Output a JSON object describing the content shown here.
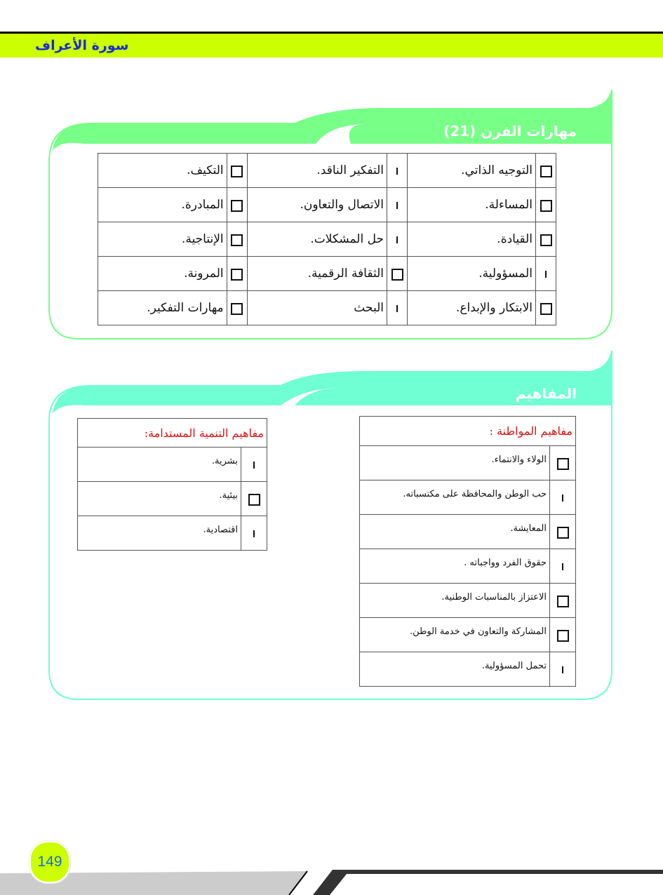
{
  "header": {
    "surah_title": "سورة الأعراف"
  },
  "skills": {
    "title": "مهارات القرن (21)",
    "rows": [
      [
        {
          "label": "التوجيه الذاتي.",
          "checked": false
        },
        {
          "label": "التفكير الناقد.",
          "checked": true
        },
        {
          "label": "التكيف.",
          "checked": false
        }
      ],
      [
        {
          "label": "المساءلة.",
          "checked": false
        },
        {
          "label": "الاتصال والتعاون.",
          "checked": true
        },
        {
          "label": "المبادرة.",
          "checked": false
        }
      ],
      [
        {
          "label": "القيادة.",
          "checked": false
        },
        {
          "label": "حل المشكلات.",
          "checked": true
        },
        {
          "label": "الإنتاجية.",
          "checked": false
        }
      ],
      [
        {
          "label": "المسؤولية.",
          "checked": true
        },
        {
          "label": "الثقافة الرقمية.",
          "checked": false
        },
        {
          "label": "المرونة.",
          "checked": false
        }
      ],
      [
        {
          "label": "الابتكار والإبداع.",
          "checked": false
        },
        {
          "label": "البحث",
          "checked": true
        },
        {
          "label": "مهارات التفكير.",
          "checked": false
        }
      ]
    ]
  },
  "concepts": {
    "title": "المفاهيم",
    "citizenship": {
      "header": "مفاهيم المواطنة :",
      "items": [
        {
          "label": "الولاء والانتماء.",
          "checked": false
        },
        {
          "label": "حب الوطن والمحافظة على مكتسباته.",
          "checked": true
        },
        {
          "label": "المعايشة.",
          "checked": false
        },
        {
          "label": "حقوق الفرد وواجباته .",
          "checked": true
        },
        {
          "label": "الاعتزاز بالمناسبات الوطنية.",
          "checked": false
        },
        {
          "label": "المشاركة والتعاون في خدمة الوطن.",
          "checked": false
        },
        {
          "label": "تحمل المسؤولية.",
          "checked": true
        }
      ]
    },
    "sustainability": {
      "header": "مفاهيم التنمية المستدامة:",
      "items": [
        {
          "label": "بشرية.",
          "checked": true
        },
        {
          "label": "بيئية.",
          "checked": false
        },
        {
          "label": "اقتصادية.",
          "checked": true
        }
      ]
    }
  },
  "footer": {
    "page_number": "149"
  },
  "colors": {
    "header_bar": "#ccff00",
    "skills_accent": "#77ff88",
    "concepts_accent": "#6fffd2",
    "surah_text": "#1a2bd6",
    "concept_header": "#dd1111"
  }
}
